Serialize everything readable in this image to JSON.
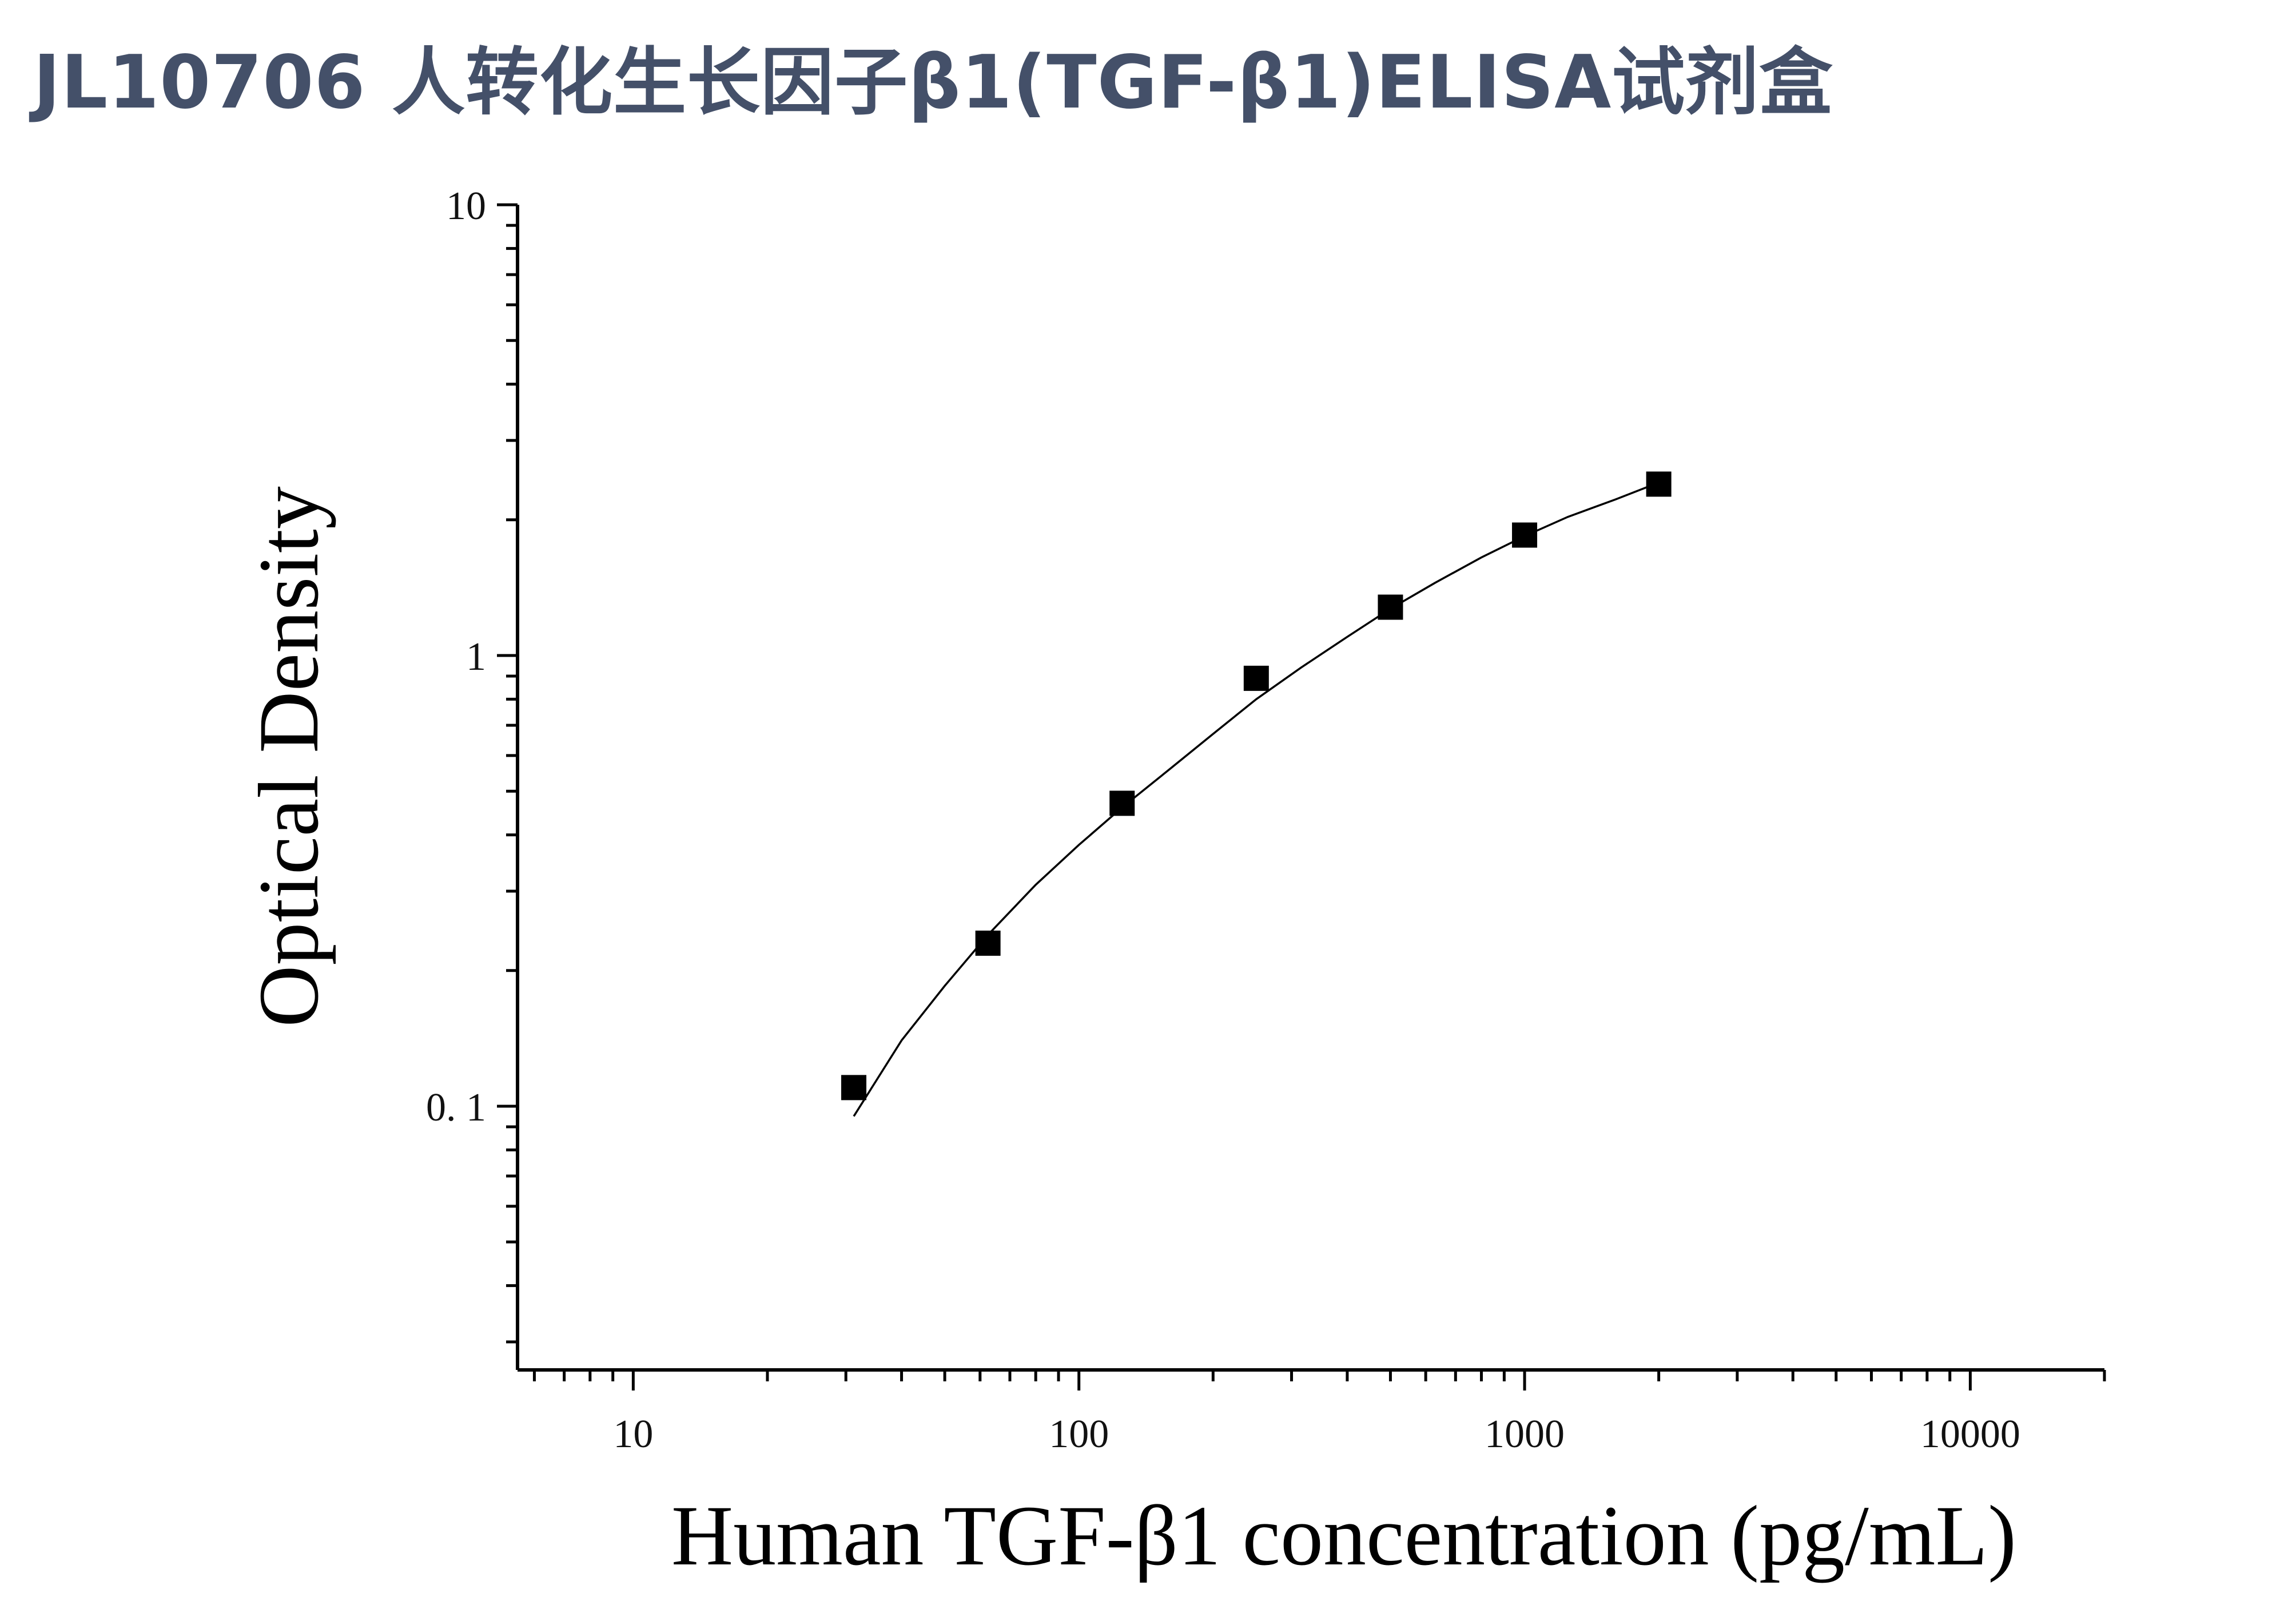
{
  "page": {
    "title": "JL10706 人转化生长因子β1(TGF-β1)ELISA试剂盒"
  },
  "chart_data": {
    "type": "scatter",
    "title": "",
    "xlabel": "Human TGF-β1 concentration (pg/mL)",
    "ylabel": "Optical Density",
    "x_scale": "log",
    "y_scale": "log",
    "xlim": [
      5.5,
      20000
    ],
    "ylim": [
      0.026,
      10
    ],
    "x_ticks": [
      10,
      100,
      1000,
      10000
    ],
    "x_tick_labels": [
      "10",
      "100",
      "1000",
      "10000"
    ],
    "y_ticks": [
      0.1,
      1,
      10
    ],
    "y_tick_labels": [
      "0. 1",
      "1",
      "10"
    ],
    "grid": false,
    "legend": "none",
    "series": [
      {
        "marker": "square",
        "color": "#000000",
        "x": [
          31.25,
          62.5,
          125,
          250,
          500,
          1000,
          2000
        ],
        "y": [
          0.11,
          0.23,
          0.47,
          0.89,
          1.28,
          1.85,
          2.4
        ]
      }
    ],
    "fit_curve": {
      "style": "line",
      "color": "#000000",
      "x": [
        31.25,
        40,
        50,
        62.5,
        80,
        100,
        125,
        160,
        200,
        250,
        315,
        400,
        500,
        630,
        800,
        1000,
        1250,
        1600,
        2000
      ],
      "y": [
        0.095,
        0.14,
        0.185,
        0.24,
        0.31,
        0.38,
        0.46,
        0.56,
        0.67,
        0.8,
        0.94,
        1.1,
        1.27,
        1.45,
        1.65,
        1.84,
        2.03,
        2.22,
        2.42
      ]
    }
  }
}
